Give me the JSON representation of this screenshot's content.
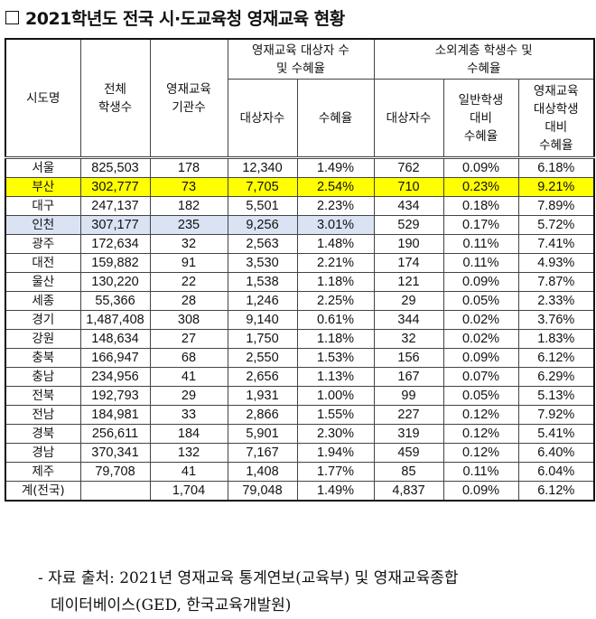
{
  "title": "2021학년도 전국 시·도교육청 영재교육 현황",
  "table": {
    "headers": {
      "region": "시도명",
      "total_students": [
        "전체",
        "학생수"
      ],
      "institutions": [
        "영재교육",
        "기관수"
      ],
      "group1": [
        "영재교육 대상자 수",
        "및 수혜율"
      ],
      "group2": [
        "소외계층 학생수 및",
        "수혜율"
      ],
      "g1_count": "대상자수",
      "g1_rate": "수혜율",
      "g2_count": "대상자수",
      "g2_rate_general": [
        "일반학생",
        "대비",
        "수혜율"
      ],
      "g2_rate_gifted": [
        "영재교육",
        "대상학생",
        "대비",
        "수혜율"
      ]
    },
    "rows": [
      {
        "region": "서울",
        "total": "825,503",
        "inst": "178",
        "count": "12,340",
        "rate": "1.49%",
        "dis_count": "762",
        "dis_rate_general": "0.09%",
        "dis_rate_gifted": "6.18%"
      },
      {
        "region": "부산",
        "total": "302,777",
        "inst": "73",
        "count": "7,705",
        "rate": "2.54%",
        "dis_count": "710",
        "dis_rate_general": "0.23%",
        "dis_rate_gifted": "9.21%"
      },
      {
        "region": "대구",
        "total": "247,137",
        "inst": "182",
        "count": "5,501",
        "rate": "2.23%",
        "dis_count": "434",
        "dis_rate_general": "0.18%",
        "dis_rate_gifted": "7.89%"
      },
      {
        "region": "인천",
        "total": "307,177",
        "inst": "235",
        "count": "9,256",
        "rate": "3.01%",
        "dis_count": "529",
        "dis_rate_general": "0.17%",
        "dis_rate_gifted": "5.72%"
      },
      {
        "region": "광주",
        "total": "172,634",
        "inst": "32",
        "count": "2,563",
        "rate": "1.48%",
        "dis_count": "190",
        "dis_rate_general": "0.11%",
        "dis_rate_gifted": "7.41%"
      },
      {
        "region": "대전",
        "total": "159,882",
        "inst": "91",
        "count": "3,530",
        "rate": "2.21%",
        "dis_count": "174",
        "dis_rate_general": "0.11%",
        "dis_rate_gifted": "4.93%"
      },
      {
        "region": "울산",
        "total": "130,220",
        "inst": "22",
        "count": "1,538",
        "rate": "1.18%",
        "dis_count": "121",
        "dis_rate_general": "0.09%",
        "dis_rate_gifted": "7.87%"
      },
      {
        "region": "세종",
        "total": "55,366",
        "inst": "28",
        "count": "1,246",
        "rate": "2.25%",
        "dis_count": "29",
        "dis_rate_general": "0.05%",
        "dis_rate_gifted": "2.33%"
      },
      {
        "region": "경기",
        "total": "1,487,408",
        "inst": "308",
        "count": "9,140",
        "rate": "0.61%",
        "dis_count": "344",
        "dis_rate_general": "0.02%",
        "dis_rate_gifted": "3.76%"
      },
      {
        "region": "강원",
        "total": "148,634",
        "inst": "27",
        "count": "1,750",
        "rate": "1.18%",
        "dis_count": "32",
        "dis_rate_general": "0.02%",
        "dis_rate_gifted": "1.83%"
      },
      {
        "region": "충북",
        "total": "166,947",
        "inst": "68",
        "count": "2,550",
        "rate": "1.53%",
        "dis_count": "156",
        "dis_rate_general": "0.09%",
        "dis_rate_gifted": "6.12%"
      },
      {
        "region": "충남",
        "total": "234,956",
        "inst": "41",
        "count": "2,656",
        "rate": "1.13%",
        "dis_count": "167",
        "dis_rate_general": "0.07%",
        "dis_rate_gifted": "6.29%"
      },
      {
        "region": "전북",
        "total": "192,793",
        "inst": "29",
        "count": "1,931",
        "rate": "1.00%",
        "dis_count": "99",
        "dis_rate_general": "0.05%",
        "dis_rate_gifted": "5.13%"
      },
      {
        "region": "전남",
        "total": "184,981",
        "inst": "33",
        "count": "2,866",
        "rate": "1.55%",
        "dis_count": "227",
        "dis_rate_general": "0.12%",
        "dis_rate_gifted": "7.92%"
      },
      {
        "region": "경북",
        "total": "256,611",
        "inst": "184",
        "count": "5,901",
        "rate": "2.30%",
        "dis_count": "319",
        "dis_rate_general": "0.12%",
        "dis_rate_gifted": "5.41%"
      },
      {
        "region": "경남",
        "total": "370,341",
        "inst": "132",
        "count": "7,167",
        "rate": "1.94%",
        "dis_count": "459",
        "dis_rate_general": "0.12%",
        "dis_rate_gifted": "6.40%"
      },
      {
        "region": "제주",
        "total": "79,708",
        "inst": "41",
        "count": "1,408",
        "rate": "1.77%",
        "dis_count": "85",
        "dis_rate_general": "0.11%",
        "dis_rate_gifted": "6.04%"
      },
      {
        "region": "계(전국)",
        "total": "",
        "inst": "1,704",
        "count": "79,048",
        "rate": "1.49%",
        "dis_count": "4,837",
        "dis_rate_general": "0.09%",
        "dis_rate_gifted": "6.12%"
      }
    ]
  },
  "highlight_colors": {
    "yellow_row": "#ffff00",
    "blue_cells": "#dae3f3"
  },
  "source": {
    "line1": "- 자료 출처: 2021년 영재교육 통계연보(교육부) 및 영재교육종합",
    "line2": "데이터베이스(GED, 한국교육개발원)"
  }
}
